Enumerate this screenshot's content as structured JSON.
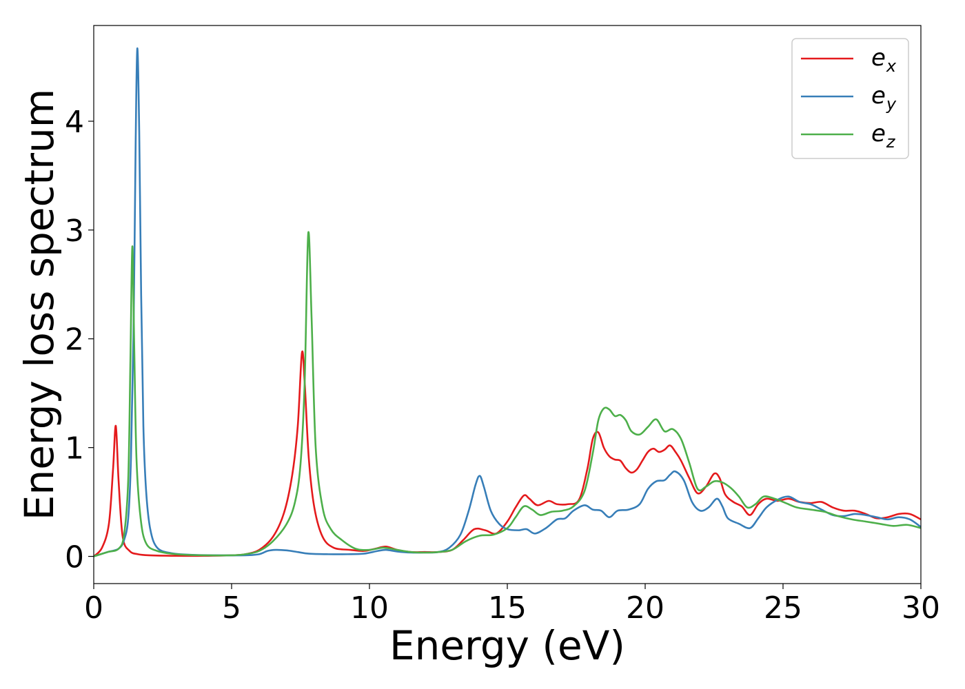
{
  "chart_data": {
    "type": "line",
    "xlabel": "Energy (eV)",
    "ylabel": "Energy loss spectrum",
    "xlim": [
      0,
      30
    ],
    "ylim": [
      -0.25,
      4.88
    ],
    "xticks": [
      0,
      5,
      10,
      15,
      20,
      25,
      30
    ],
    "xtick_labels": [
      "0",
      "5",
      "10",
      "15",
      "20",
      "25",
      "30"
    ],
    "yticks": [
      0,
      1,
      2,
      3,
      4
    ],
    "ytick_labels": [
      "0",
      "1",
      "2",
      "3",
      "4"
    ],
    "grid": false,
    "legend_position": "top-right",
    "series": [
      {
        "name": "ex",
        "name_base": "e",
        "name_sub": "x",
        "color": "#e41a1c",
        "points": [
          [
            0,
            0
          ],
          [
            0.3,
            0.08
          ],
          [
            0.55,
            0.3
          ],
          [
            0.7,
            0.8
          ],
          [
            0.8,
            1.2
          ],
          [
            0.9,
            0.7
          ],
          [
            1.05,
            0.18
          ],
          [
            1.3,
            0.05
          ],
          [
            1.6,
            0.02
          ],
          [
            2,
            0.01
          ],
          [
            3,
            0.005
          ],
          [
            4,
            0.005
          ],
          [
            5,
            0.01
          ],
          [
            5.5,
            0.02
          ],
          [
            6,
            0.06
          ],
          [
            6.5,
            0.18
          ],
          [
            6.9,
            0.4
          ],
          [
            7.2,
            0.75
          ],
          [
            7.4,
            1.2
          ],
          [
            7.55,
            1.87
          ],
          [
            7.65,
            1.6
          ],
          [
            7.8,
            0.9
          ],
          [
            8,
            0.45
          ],
          [
            8.3,
            0.18
          ],
          [
            8.7,
            0.08
          ],
          [
            9.3,
            0.06
          ],
          [
            9.8,
            0.05
          ],
          [
            10.2,
            0.07
          ],
          [
            10.6,
            0.09
          ],
          [
            11,
            0.06
          ],
          [
            11.5,
            0.04
          ],
          [
            12,
            0.04
          ],
          [
            12.5,
            0.04
          ],
          [
            13,
            0.06
          ],
          [
            13.4,
            0.15
          ],
          [
            13.8,
            0.25
          ],
          [
            14.2,
            0.24
          ],
          [
            14.6,
            0.21
          ],
          [
            15,
            0.32
          ],
          [
            15.3,
            0.45
          ],
          [
            15.6,
            0.56
          ],
          [
            15.8,
            0.53
          ],
          [
            16.1,
            0.47
          ],
          [
            16.5,
            0.51
          ],
          [
            16.8,
            0.48
          ],
          [
            17.2,
            0.48
          ],
          [
            17.6,
            0.52
          ],
          [
            17.9,
            0.8
          ],
          [
            18.1,
            1.08
          ],
          [
            18.3,
            1.14
          ],
          [
            18.5,
            1.0
          ],
          [
            18.7,
            0.92
          ],
          [
            18.9,
            0.89
          ],
          [
            19.1,
            0.88
          ],
          [
            19.3,
            0.81
          ],
          [
            19.5,
            0.77
          ],
          [
            19.7,
            0.8
          ],
          [
            19.9,
            0.88
          ],
          [
            20.1,
            0.96
          ],
          [
            20.3,
            0.99
          ],
          [
            20.5,
            0.96
          ],
          [
            20.7,
            0.98
          ],
          [
            20.9,
            1.02
          ],
          [
            21.1,
            0.96
          ],
          [
            21.3,
            0.88
          ],
          [
            21.6,
            0.72
          ],
          [
            21.9,
            0.58
          ],
          [
            22.2,
            0.64
          ],
          [
            22.5,
            0.76
          ],
          [
            22.7,
            0.72
          ],
          [
            22.9,
            0.57
          ],
          [
            23.2,
            0.5
          ],
          [
            23.5,
            0.46
          ],
          [
            23.8,
            0.38
          ],
          [
            24.1,
            0.48
          ],
          [
            24.4,
            0.53
          ],
          [
            24.8,
            0.51
          ],
          [
            25.2,
            0.53
          ],
          [
            25.6,
            0.5
          ],
          [
            26,
            0.49
          ],
          [
            26.4,
            0.5
          ],
          [
            26.8,
            0.45
          ],
          [
            27.2,
            0.42
          ],
          [
            27.6,
            0.42
          ],
          [
            28,
            0.39
          ],
          [
            28.4,
            0.35
          ],
          [
            28.8,
            0.36
          ],
          [
            29.2,
            0.39
          ],
          [
            29.6,
            0.39
          ],
          [
            30,
            0.34
          ]
        ]
      },
      {
        "name": "ey",
        "name_base": "e",
        "name_sub": "y",
        "color": "#377eb8",
        "points": [
          [
            0,
            0
          ],
          [
            0.5,
            0.04
          ],
          [
            0.9,
            0.07
          ],
          [
            1.1,
            0.15
          ],
          [
            1.25,
            0.35
          ],
          [
            1.35,
            0.9
          ],
          [
            1.45,
            2.2
          ],
          [
            1.52,
            3.8
          ],
          [
            1.58,
            4.67
          ],
          [
            1.65,
            3.9
          ],
          [
            1.72,
            2.4
          ],
          [
            1.8,
            1.2
          ],
          [
            1.9,
            0.6
          ],
          [
            2.05,
            0.25
          ],
          [
            2.3,
            0.08
          ],
          [
            2.8,
            0.03
          ],
          [
            3.5,
            0.015
          ],
          [
            4.5,
            0.01
          ],
          [
            5.5,
            0.01
          ],
          [
            6,
            0.02
          ],
          [
            6.3,
            0.05
          ],
          [
            6.6,
            0.06
          ],
          [
            7,
            0.055
          ],
          [
            7.4,
            0.04
          ],
          [
            7.8,
            0.025
          ],
          [
            8.5,
            0.02
          ],
          [
            9.2,
            0.02
          ],
          [
            9.8,
            0.025
          ],
          [
            10.3,
            0.05
          ],
          [
            10.6,
            0.06
          ],
          [
            11,
            0.045
          ],
          [
            11.5,
            0.035
          ],
          [
            12,
            0.035
          ],
          [
            12.5,
            0.04
          ],
          [
            12.9,
            0.08
          ],
          [
            13.3,
            0.2
          ],
          [
            13.6,
            0.42
          ],
          [
            13.85,
            0.66
          ],
          [
            14,
            0.74
          ],
          [
            14.15,
            0.64
          ],
          [
            14.4,
            0.42
          ],
          [
            14.7,
            0.3
          ],
          [
            15,
            0.25
          ],
          [
            15.4,
            0.24
          ],
          [
            15.7,
            0.25
          ],
          [
            16,
            0.21
          ],
          [
            16.4,
            0.26
          ],
          [
            16.8,
            0.34
          ],
          [
            17.1,
            0.35
          ],
          [
            17.4,
            0.42
          ],
          [
            17.8,
            0.47
          ],
          [
            18.1,
            0.43
          ],
          [
            18.4,
            0.42
          ],
          [
            18.7,
            0.36
          ],
          [
            19,
            0.42
          ],
          [
            19.4,
            0.43
          ],
          [
            19.8,
            0.48
          ],
          [
            20.1,
            0.62
          ],
          [
            20.4,
            0.69
          ],
          [
            20.7,
            0.7
          ],
          [
            20.9,
            0.75
          ],
          [
            21.1,
            0.78
          ],
          [
            21.4,
            0.7
          ],
          [
            21.7,
            0.5
          ],
          [
            22,
            0.42
          ],
          [
            22.3,
            0.45
          ],
          [
            22.6,
            0.53
          ],
          [
            22.8,
            0.46
          ],
          [
            23,
            0.35
          ],
          [
            23.4,
            0.3
          ],
          [
            23.8,
            0.26
          ],
          [
            24.1,
            0.35
          ],
          [
            24.4,
            0.45
          ],
          [
            24.8,
            0.52
          ],
          [
            25.2,
            0.55
          ],
          [
            25.6,
            0.5
          ],
          [
            26,
            0.48
          ],
          [
            26.4,
            0.43
          ],
          [
            26.8,
            0.38
          ],
          [
            27.2,
            0.37
          ],
          [
            27.6,
            0.39
          ],
          [
            28,
            0.38
          ],
          [
            28.4,
            0.36
          ],
          [
            28.8,
            0.34
          ],
          [
            29.2,
            0.36
          ],
          [
            29.6,
            0.34
          ],
          [
            30,
            0.27
          ]
        ]
      },
      {
        "name": "ez",
        "name_base": "e",
        "name_sub": "z",
        "color": "#4daf4a",
        "points": [
          [
            0,
            0
          ],
          [
            0.5,
            0.04
          ],
          [
            0.9,
            0.07
          ],
          [
            1.1,
            0.2
          ],
          [
            1.25,
            0.7
          ],
          [
            1.33,
            1.8
          ],
          [
            1.4,
            2.85
          ],
          [
            1.47,
            1.9
          ],
          [
            1.55,
            0.9
          ],
          [
            1.7,
            0.35
          ],
          [
            1.9,
            0.12
          ],
          [
            2.3,
            0.05
          ],
          [
            3,
            0.02
          ],
          [
            4,
            0.01
          ],
          [
            5,
            0.01
          ],
          [
            5.5,
            0.02
          ],
          [
            6,
            0.05
          ],
          [
            6.5,
            0.14
          ],
          [
            7,
            0.3
          ],
          [
            7.3,
            0.5
          ],
          [
            7.5,
            0.85
          ],
          [
            7.65,
            1.6
          ],
          [
            7.78,
            2.97
          ],
          [
            7.9,
            2.2
          ],
          [
            8.05,
            1.0
          ],
          [
            8.3,
            0.45
          ],
          [
            8.6,
            0.25
          ],
          [
            9,
            0.15
          ],
          [
            9.5,
            0.07
          ],
          [
            10,
            0.06
          ],
          [
            10.5,
            0.08
          ],
          [
            11,
            0.06
          ],
          [
            11.5,
            0.04
          ],
          [
            12,
            0.035
          ],
          [
            12.5,
            0.04
          ],
          [
            13,
            0.06
          ],
          [
            13.5,
            0.14
          ],
          [
            14,
            0.19
          ],
          [
            14.5,
            0.2
          ],
          [
            15,
            0.26
          ],
          [
            15.3,
            0.36
          ],
          [
            15.6,
            0.46
          ],
          [
            15.9,
            0.43
          ],
          [
            16.2,
            0.38
          ],
          [
            16.6,
            0.41
          ],
          [
            17,
            0.42
          ],
          [
            17.4,
            0.46
          ],
          [
            17.8,
            0.6
          ],
          [
            18.1,
            0.95
          ],
          [
            18.3,
            1.25
          ],
          [
            18.5,
            1.36
          ],
          [
            18.7,
            1.35
          ],
          [
            18.9,
            1.29
          ],
          [
            19.1,
            1.3
          ],
          [
            19.3,
            1.25
          ],
          [
            19.5,
            1.15
          ],
          [
            19.8,
            1.12
          ],
          [
            20.1,
            1.19
          ],
          [
            20.4,
            1.26
          ],
          [
            20.7,
            1.15
          ],
          [
            21,
            1.17
          ],
          [
            21.3,
            1.08
          ],
          [
            21.6,
            0.86
          ],
          [
            21.9,
            0.62
          ],
          [
            22.2,
            0.64
          ],
          [
            22.5,
            0.69
          ],
          [
            22.8,
            0.68
          ],
          [
            23.1,
            0.63
          ],
          [
            23.4,
            0.55
          ],
          [
            23.7,
            0.45
          ],
          [
            24,
            0.48
          ],
          [
            24.3,
            0.55
          ],
          [
            24.7,
            0.53
          ],
          [
            25.1,
            0.49
          ],
          [
            25.5,
            0.45
          ],
          [
            26,
            0.43
          ],
          [
            26.5,
            0.41
          ],
          [
            27,
            0.37
          ],
          [
            27.5,
            0.34
          ],
          [
            28,
            0.32
          ],
          [
            28.5,
            0.3
          ],
          [
            29,
            0.28
          ],
          [
            29.5,
            0.29
          ],
          [
            30,
            0.26
          ]
        ]
      }
    ]
  }
}
